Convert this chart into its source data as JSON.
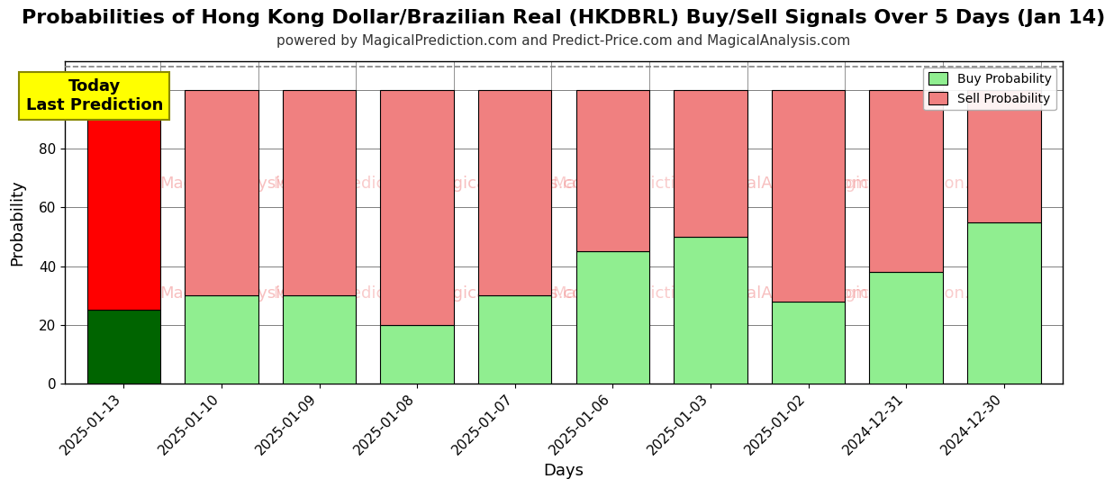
{
  "title": "Probabilities of Hong Kong Dollar/Brazilian Real (HKDBRL) Buy/Sell Signals Over 5 Days (Jan 14)",
  "subtitle": "powered by MagicalPrediction.com and Predict-Price.com and MagicalAnalysis.com",
  "xlabel": "Days",
  "ylabel": "Probability",
  "categories": [
    "2025-01-13",
    "2025-01-10",
    "2025-01-09",
    "2025-01-08",
    "2025-01-07",
    "2025-01-06",
    "2025-01-03",
    "2025-01-02",
    "2024-12-31",
    "2024-12-30"
  ],
  "buy_values": [
    25,
    30,
    30,
    20,
    30,
    45,
    50,
    28,
    38,
    55
  ],
  "sell_values": [
    75,
    70,
    70,
    80,
    70,
    55,
    50,
    72,
    62,
    45
  ],
  "buy_color_today": "#006400",
  "sell_color_today": "#ff0000",
  "buy_color_normal": "#90EE90",
  "sell_color_normal": "#F08080",
  "bar_edge_color": "#000000",
  "annotation_text": "Today\nLast Prediction",
  "annotation_bg": "#ffff00",
  "legend_buy": "Buy Probability",
  "legend_sell": "Sell Probability",
  "ylim": [
    0,
    110
  ],
  "dashed_line_y": 108,
  "watermark_texts": [
    "MagicalAnalysis.com",
    "MagicalPrediction.com"
  ],
  "title_fontsize": 16,
  "subtitle_fontsize": 11,
  "axis_label_fontsize": 13,
  "tick_fontsize": 11
}
